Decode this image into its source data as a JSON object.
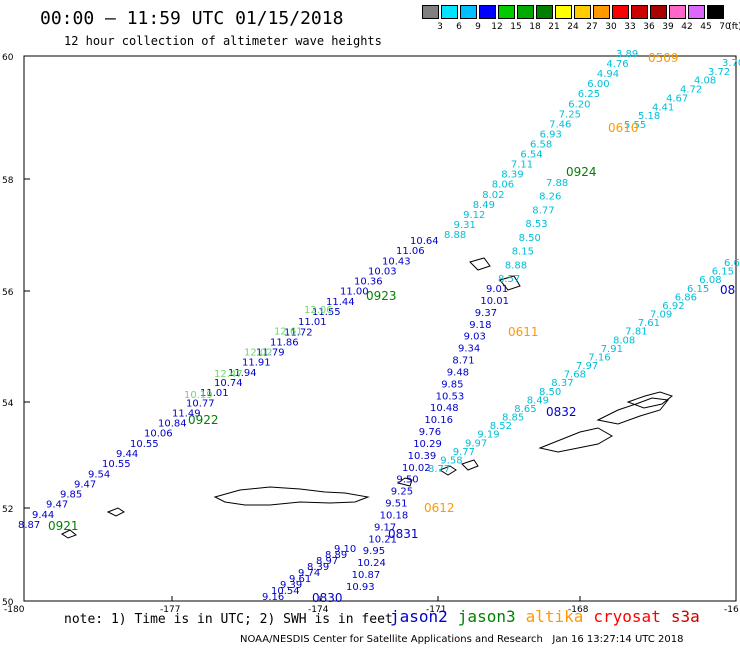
{
  "header": {
    "title": "00:00 – 11:59 UTC 01/15/2018",
    "subtitle": "12 hour collection of altimeter wave heights"
  },
  "colorbar": {
    "unit": "(ft)",
    "labels": [
      "3",
      "6",
      "9",
      "12",
      "15",
      "18",
      "21",
      "24",
      "27",
      "30",
      "33",
      "36",
      "39",
      "42",
      "45",
      "70"
    ],
    "colors": [
      "#808080",
      "#00e5ff",
      "#00bfff",
      "#0000ff",
      "#00cc00",
      "#00aa00",
      "#008000",
      "#ffff00",
      "#ffcc00",
      "#ff9900",
      "#ff0000",
      "#cc0000",
      "#aa0000",
      "#ff66cc",
      "#dd66ff",
      "#000000"
    ]
  },
  "axes": {
    "x_ticks": [
      "-180",
      "-177",
      "-174",
      "-171",
      "-168",
      "-16"
    ],
    "y_ticks": [
      "60",
      "58",
      "56",
      "54",
      "52",
      "50"
    ]
  },
  "passes": [
    {
      "label": "0509",
      "color": "#ff9900"
    },
    {
      "label": "0610",
      "color": "#ff9900"
    },
    {
      "label": "0924",
      "color": "#008000"
    },
    {
      "label": "0923",
      "color": "#008000"
    },
    {
      "label": "0611",
      "color": "#ff9900"
    },
    {
      "label": "0922",
      "color": "#008000"
    },
    {
      "label": "0832",
      "color": "#0000cc"
    },
    {
      "label": "0612",
      "color": "#ff9900"
    },
    {
      "label": "0921",
      "color": "#008000"
    },
    {
      "label": "0831",
      "color": "#0000cc"
    },
    {
      "label": "0830",
      "color": "#0000cc"
    },
    {
      "label": "08",
      "color": "#0000cc"
    }
  ],
  "tracks": [
    {
      "name": "jason3-upper",
      "color": "#0000cc",
      "values": [
        "8.87",
        "9.44",
        "9.47",
        "9.85",
        "9.47",
        "9.54",
        "10.55",
        "9.44",
        "10.55",
        "10.06",
        "10.84",
        "11.49",
        "10.77",
        "11.01",
        "10.74",
        "11.94",
        "11.91",
        "11.79",
        "11.86",
        "11.72",
        "11.01",
        "11.55",
        "11.44",
        "11.00",
        "10.36",
        "10.03",
        "10.43",
        "11.06",
        "10.64"
      ]
    },
    {
      "name": "jason3-upper-green",
      "color": "#66dd66",
      "values": [
        "10.19",
        "12.47",
        "12.02",
        "12.61",
        "12.06"
      ]
    },
    {
      "name": "ne-cyan",
      "color": "#00bfd8",
      "values": [
        "3.89",
        "4.76",
        "4.94",
        "6.00",
        "6.25",
        "6.20",
        "7.25",
        "7.46",
        "6.93",
        "6.58",
        "6.54",
        "7.11",
        "8.39",
        "8.06",
        "8.02",
        "8.49",
        "9.12",
        "9.31",
        "8.88"
      ]
    },
    {
      "name": "ne-cyan-right",
      "color": "#00bfd8",
      "values": [
        "3.70",
        "3.72",
        "4.08",
        "4.72",
        "4.67",
        "4.41",
        "5.18",
        "5.55"
      ]
    },
    {
      "name": "mid-track",
      "color": "#0000cc",
      "values": [
        "9.01",
        "10.01",
        "9.37",
        "9.18",
        "9.03",
        "9.34",
        "8.71",
        "9.48",
        "9.85",
        "10.53",
        "10.48",
        "10.16",
        "9.76",
        "10.29",
        "10.39",
        "10.02",
        "9.50",
        "9.25",
        "9.51",
        "10.18",
        "9.17",
        "10.21",
        "9.95",
        "10.24",
        "10.87",
        "10.93"
      ]
    },
    {
      "name": "mid-cyan",
      "color": "#00bfd8",
      "values": [
        "7.88",
        "8.26",
        "8.77",
        "8.53",
        "8.50",
        "8.15",
        "8.88",
        "8.57"
      ]
    },
    {
      "name": "lower-cyan",
      "color": "#00bfd8",
      "values": [
        "6.6",
        "6.15",
        "6.08",
        "6.15",
        "6.86",
        "6.92",
        "7.09",
        "7.61",
        "7.81",
        "8.08",
        "7.91",
        "7.16",
        "7.97",
        "7.68",
        "8.37",
        "8.50",
        "8.49",
        "8.65",
        "8.85",
        "8.52",
        "9.19",
        "9.97",
        "9.77",
        "9.58",
        "8.77"
      ]
    },
    {
      "name": "lower-left",
      "color": "#0000cc",
      "values": [
        "9.10",
        "8.89",
        "8.97",
        "8.39",
        "9.74",
        "9.61",
        "9.39",
        "10.54",
        "9.16"
      ]
    }
  ],
  "note": "note: 1) Time is in UTC; 2) SWH is in feet",
  "legend": [
    {
      "name": "jason2",
      "color": "#0000cc"
    },
    {
      "name": "jason3",
      "color": "#008000"
    },
    {
      "name": "altika",
      "color": "#ff9900"
    },
    {
      "name": "cryosat",
      "color": "#ff0000"
    },
    {
      "name": "s3a",
      "color": "#cc0000"
    }
  ],
  "credit": "NOAA/NESDIS Center for Satellite Applications and Research   Jan 16 13:27:14 UTC 2018"
}
